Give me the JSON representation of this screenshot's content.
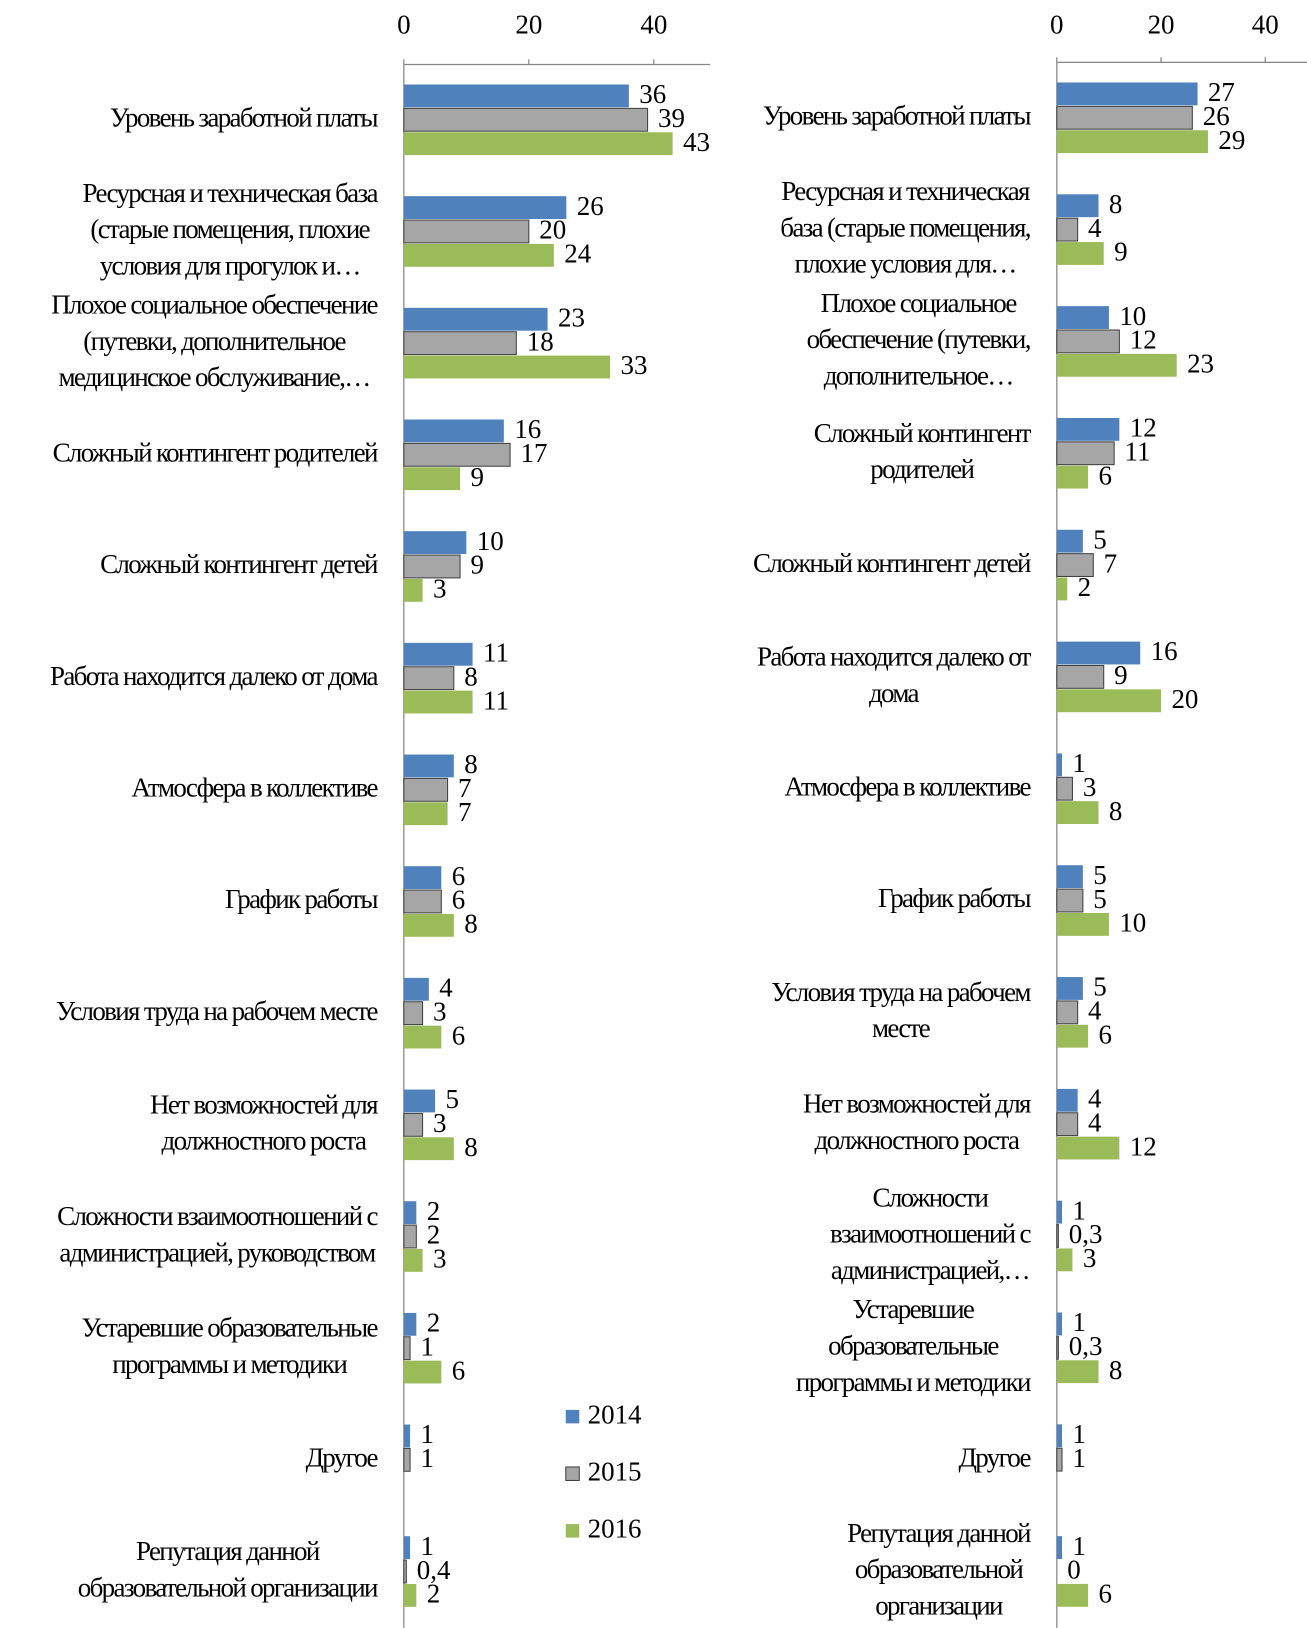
{
  "chart_data": [
    {
      "type": "bar",
      "orientation": "horizontal",
      "categories": [
        [
          "Уровень заработной платы"
        ],
        [
          "Ресурсная и техническая база",
          "(старые помещения, плохие",
          "условия для прогулок и…"
        ],
        [
          "Плохое социальное обеспечение",
          "(путевки, дополнительное",
          "медицинское обслуживание,…"
        ],
        [
          "Сложный контингент родителей"
        ],
        [
          "Сложный контингент детей"
        ],
        [
          "Работа находится далеко от дома"
        ],
        [
          "Атмосфера в коллективе"
        ],
        [
          "График работы"
        ],
        [
          "Условия труда на рабочем месте"
        ],
        [
          "Нет возможностей для",
          "должностного роста"
        ],
        [
          "Сложности взаимоотношений с",
          "администрацией, руководством"
        ],
        [
          "Устаревшие образовательные",
          "программы и методики"
        ],
        [
          "Другое"
        ],
        [
          "Репутация данной",
          "образовательной организации"
        ]
      ],
      "series": [
        {
          "name": "2014",
          "color": "#4f81bd",
          "values": [
            36,
            26,
            23,
            16,
            10,
            11,
            8,
            6,
            4,
            5,
            2,
            2,
            1,
            1
          ]
        },
        {
          "name": "2015",
          "color": "#a6a6a6",
          "values": [
            39,
            20,
            18,
            17,
            9,
            8,
            7,
            6,
            3,
            3,
            2,
            1,
            1,
            0.4
          ],
          "value_labels": [
            "39",
            "20",
            "18",
            "17",
            "9",
            "8",
            "7",
            "6",
            "3",
            "3",
            "2",
            "1",
            "1",
            "0,4"
          ]
        },
        {
          "name": "2016",
          "color": "#9bbb59",
          "values": [
            43,
            24,
            33,
            9,
            3,
            11,
            7,
            8,
            6,
            8,
            3,
            6,
            null,
            2
          ]
        }
      ],
      "xlim": [
        0,
        49
      ],
      "xticks": [
        0,
        20,
        40
      ],
      "legend": "right"
    },
    {
      "type": "bar",
      "orientation": "horizontal",
      "categories": [
        [
          "Уровень заработной платы"
        ],
        [
          "Ресурсная и техническая",
          "база (старые помещения,",
          "плохие условия для…"
        ],
        [
          "Плохое социальное",
          "обеспечение (путевки,",
          "дополнительное…"
        ],
        [
          "Сложный контингент",
          "родителей"
        ],
        [
          "Сложный контингент детей"
        ],
        [
          "Работа находится далеко от",
          "дома"
        ],
        [
          "Атмосфера в коллективе"
        ],
        [
          "График работы"
        ],
        [
          "Условия труда на рабочем",
          "месте"
        ],
        [
          "Нет возможностей для",
          "должностного роста"
        ],
        [
          "Сложности",
          "взаимоотношений с",
          "администрацией,…"
        ],
        [
          "Устаревшие",
          "образовательные",
          "программы и методики"
        ],
        [
          "Другое"
        ],
        [
          "Репутация данной",
          "образовательной",
          "организации"
        ]
      ],
      "series": [
        {
          "color": "#4f81bd",
          "values": [
            27,
            8,
            10,
            12,
            5,
            16,
            1,
            5,
            5,
            4,
            1,
            1,
            1,
            1
          ]
        },
        {
          "color": "#a6a6a6",
          "values": [
            26,
            4,
            12,
            11,
            7,
            9,
            3,
            5,
            4,
            4,
            0.3,
            0.3,
            1,
            0
          ],
          "value_labels": [
            "26",
            "4",
            "12",
            "11",
            "7",
            "9",
            "3",
            "5",
            "4",
            "4",
            "0,3",
            "0,3",
            "1",
            "0"
          ]
        },
        {
          "color": "#9bbb59",
          "values": [
            29,
            9,
            23,
            6,
            2,
            20,
            8,
            10,
            6,
            12,
            3,
            8,
            null,
            6
          ]
        }
      ],
      "xlim": [
        0,
        48
      ],
      "xticks": [
        0,
        20,
        40
      ]
    }
  ]
}
